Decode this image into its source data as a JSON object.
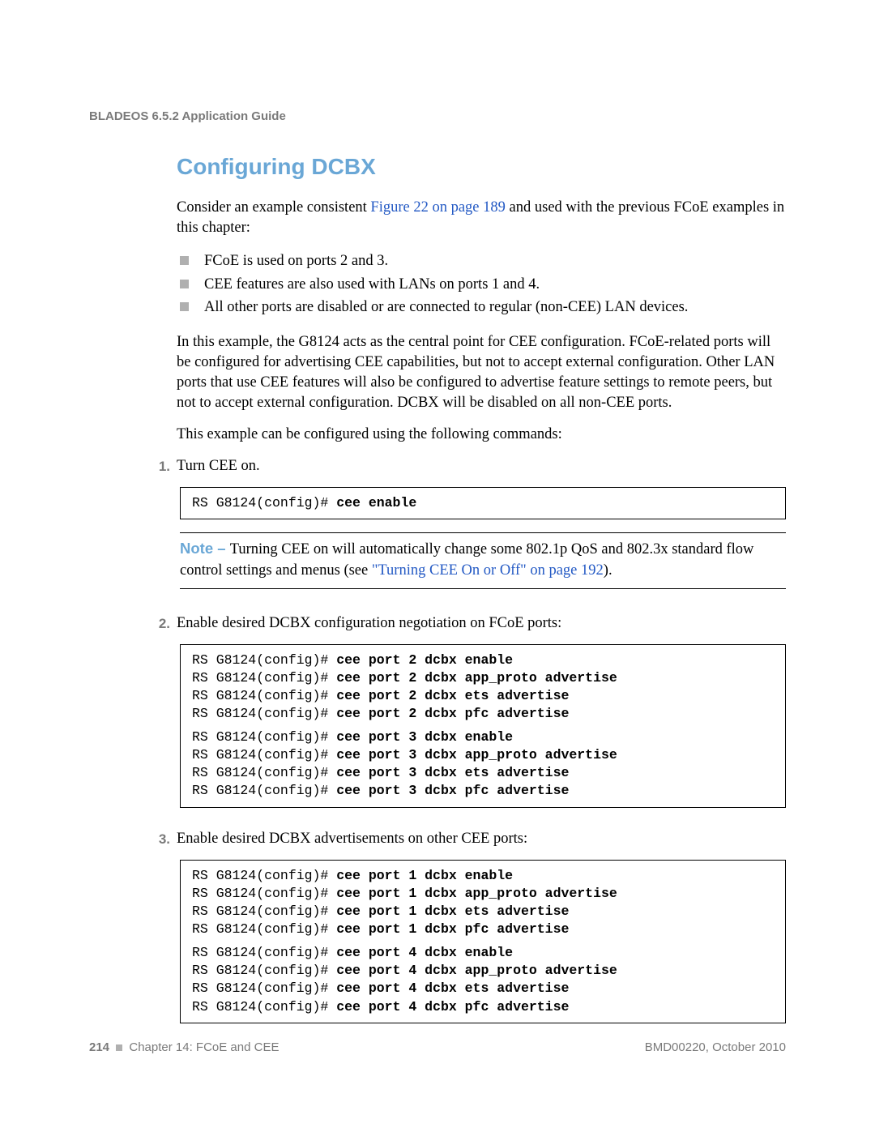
{
  "header": {
    "title": "BLADEOS 6.5.2 Application Guide"
  },
  "section": {
    "title": "Configuring DCBX"
  },
  "intro": {
    "p1_a": "Consider an example consistent ",
    "p1_link": "Figure 22 on page 189",
    "p1_b": " and used with the previous FCoE examples in this chapter:"
  },
  "bullets": {
    "b1": "FCoE is used on ports 2 and 3.",
    "b2": "CEE features are also used with LANs on ports 1 and 4.",
    "b3": "All other ports are disabled or are connected to regular (non-CEE) LAN devices."
  },
  "para2": "In this example, the G8124 acts as the central point for CEE configuration. FCoE-related ports will be configured for advertising CEE capabilities, but not to accept external configuration. Other LAN ports that use CEE features will also be configured to advertise feature settings to remote peers, but not to accept external configuration. DCBX will be disabled on all non-CEE ports.",
  "para3": "This example can be configured using the following commands:",
  "step1": {
    "num": "1.",
    "text": "Turn CEE on.",
    "code_prompt": "RS G8124(config)# ",
    "code_cmd": "cee enable"
  },
  "note": {
    "label": "Note – ",
    "t1": "Turning CEE on will automatically change some 802.1p QoS and 802.3x standard flow control settings and menus (see ",
    "link": "\"Turning CEE On or Off\" on page 192",
    "t2": ")."
  },
  "step2": {
    "num": "2.",
    "text": "Enable desired DCBX configuration negotiation on FCoE ports:",
    "prompt": "RS G8124(config)# ",
    "c1": "cee port 2 dcbx enable",
    "c2": "cee port 2 dcbx app_proto advertise",
    "c3": "cee port 2 dcbx ets advertise",
    "c4": "cee port 2 dcbx pfc advertise",
    "c5": "cee port 3 dcbx enable",
    "c6": "cee port 3 dcbx app_proto advertise",
    "c7": "cee port 3 dcbx ets advertise",
    "c8": "cee port 3 dcbx pfc advertise"
  },
  "step3": {
    "num": "3.",
    "text": "Enable desired DCBX advertisements on other CEE ports:",
    "prompt": "RS G8124(config)# ",
    "c1": "cee port 1 dcbx enable",
    "c2": "cee port 1 dcbx app_proto advertise",
    "c3": "cee port 1 dcbx ets advertise",
    "c4": "cee port 1 dcbx pfc advertise",
    "c5": "cee port 4 dcbx enable",
    "c6": "cee port 4 dcbx app_proto advertise",
    "c7": "cee port 4 dcbx ets advertise",
    "c8": "cee port 4 dcbx pfc advertise"
  },
  "footer": {
    "page": "214",
    "chapter": "Chapter 14: FCoE and CEE",
    "docid": "BMD00220, October 2010"
  }
}
